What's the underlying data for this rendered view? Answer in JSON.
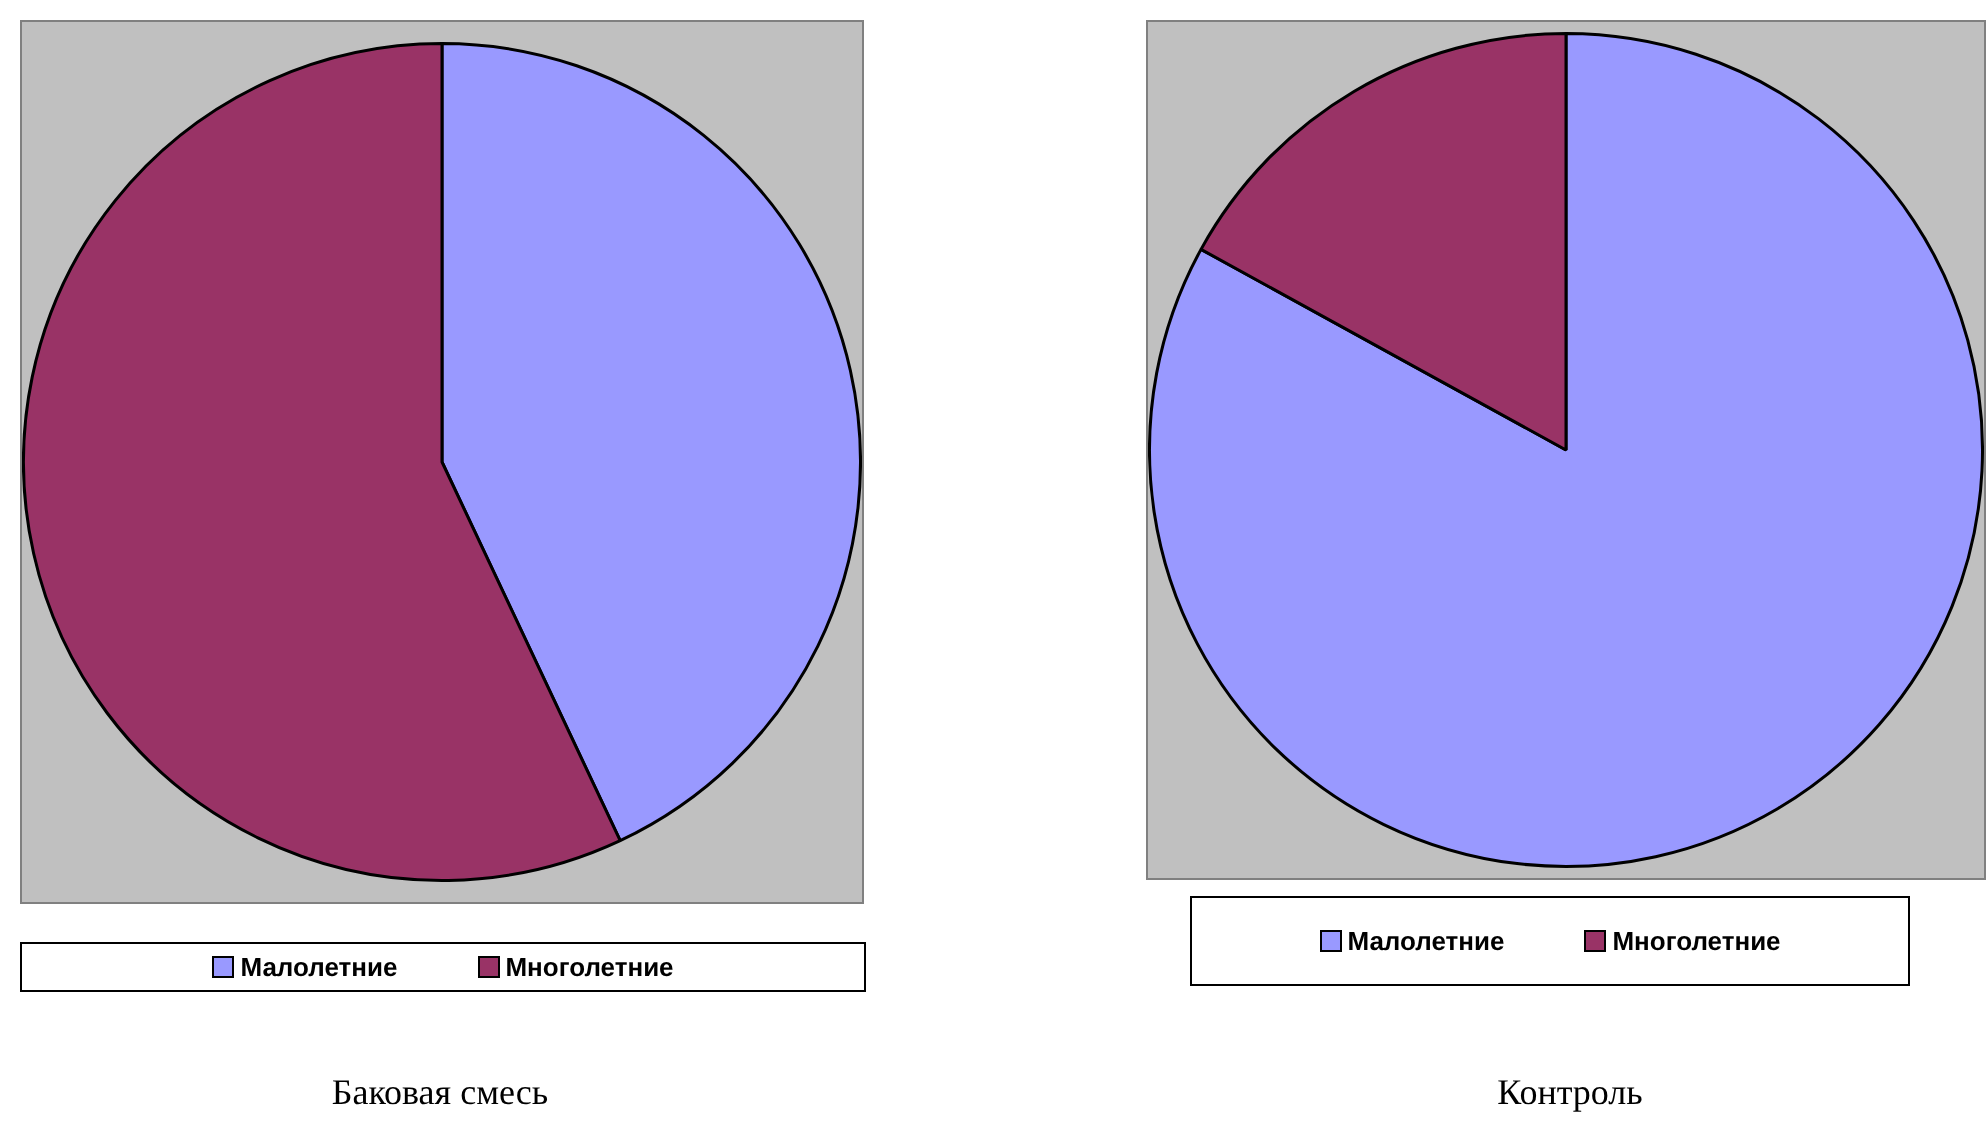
{
  "chart_data": [
    {
      "type": "pie",
      "title": "Баковая смесь",
      "categories": [
        "Малолетние",
        "Многолетние"
      ],
      "values": [
        43,
        57
      ],
      "colors": [
        "#9999ff",
        "#993366"
      ],
      "legend": "bottom"
    },
    {
      "type": "pie",
      "title": "Контроль",
      "categories": [
        "Малолетние",
        "Многолетние"
      ],
      "values": [
        83,
        17
      ],
      "colors": [
        "#9999ff",
        "#993366"
      ],
      "legend": "bottom"
    }
  ]
}
